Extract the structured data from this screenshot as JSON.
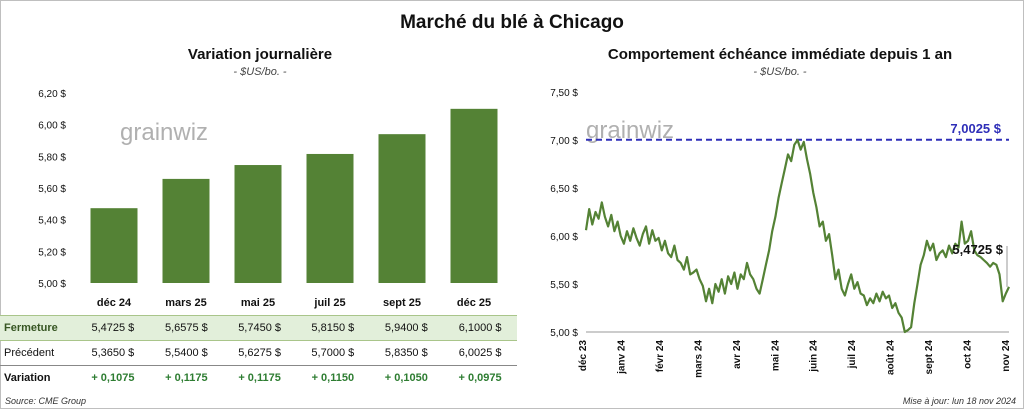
{
  "title": "Marché du blé à Chicago",
  "left_chart": {
    "title": "Variation journalière",
    "unit": "- $US/bo. -"
  },
  "right_chart": {
    "title": "Comportement échéance immédiate depuis 1 an",
    "unit": "- $US/bo. -"
  },
  "watermark": "grainwiz",
  "table": {
    "rows": [
      {
        "label": "Fermeture",
        "values": [
          "5,4725 $",
          "5,6575 $",
          "5,7450 $",
          "5,8150 $",
          "5,9400 $",
          "6,1000 $"
        ]
      },
      {
        "label": "Précédent",
        "values": [
          "5,3650 $",
          "5,5400 $",
          "5,6275 $",
          "5,7000 $",
          "5,8350 $",
          "6,0025 $"
        ]
      },
      {
        "label": "Variation",
        "values": [
          "+ 0,1075",
          "+ 0,1175",
          "+ 0,1175",
          "+ 0,1150",
          "+ 0,1050",
          "+ 0,0975"
        ]
      }
    ]
  },
  "footer": {
    "source": "Source: CME Group",
    "update": "Mise à jour: lun 18 nov 2024"
  },
  "colors": {
    "bar": "#548235",
    "line": "#548235",
    "ref_line": "#2e2eb8",
    "close_row_bg": "#e2efda"
  },
  "chart_data": [
    {
      "type": "bar",
      "title": "Variation journalière",
      "categories": [
        "déc 24",
        "mars 25",
        "mai 25",
        "juil 25",
        "sept 25",
        "déc 25"
      ],
      "values": [
        5.4725,
        5.6575,
        5.745,
        5.815,
        5.94,
        6.1
      ],
      "ylim": [
        5.0,
        6.2
      ],
      "yticks": [
        "5,00 $",
        "5,20 $",
        "5,40 $",
        "5,60 $",
        "5,80 $",
        "6,00 $",
        "6,20 $"
      ],
      "grid": false
    },
    {
      "type": "line",
      "title": "Comportement échéance immédiate depuis 1 an",
      "ylim": [
        5.0,
        7.5
      ],
      "yticks": [
        "5,00 $",
        "5,50 $",
        "6,00 $",
        "6,50 $",
        "7,00 $",
        "7,50 $"
      ],
      "xticks": [
        "déc 23",
        "janv 24",
        "févr 24",
        "mars 24",
        "avr 24",
        "mai 24",
        "juin 24",
        "juil 24",
        "août 24",
        "sept 24",
        "oct 24",
        "nov 24"
      ],
      "reference_line": {
        "value": 7.0025,
        "label": "7,0025 $"
      },
      "last_label": "5,4725 $",
      "series": [
        {
          "values": [
            6.06,
            6.28,
            6.12,
            6.25,
            6.18,
            6.35,
            6.2,
            6.1,
            6.22,
            6.05,
            6.15,
            6.0,
            5.92,
            6.05,
            5.95,
            6.08,
            5.98,
            5.9,
            6.02,
            6.1,
            5.92,
            6.06,
            5.95,
            5.98,
            5.85,
            5.95,
            5.82,
            5.78,
            5.9,
            5.75,
            5.72,
            5.65,
            5.78,
            5.6,
            5.62,
            5.65,
            5.55,
            5.48,
            5.32,
            5.45,
            5.3,
            5.5,
            5.42,
            5.55,
            5.4,
            5.58,
            5.5,
            5.62,
            5.45,
            5.6,
            5.55,
            5.72,
            5.6,
            5.55,
            5.45,
            5.4,
            5.55,
            5.7,
            5.85,
            6.05,
            6.2,
            6.4,
            6.55,
            6.7,
            6.85,
            6.78,
            6.95,
            7.0,
            6.9,
            6.98,
            6.8,
            6.65,
            6.45,
            6.3,
            6.1,
            6.15,
            5.95,
            6.02,
            5.8,
            5.55,
            5.65,
            5.45,
            5.38,
            5.5,
            5.6,
            5.45,
            5.52,
            5.4,
            5.38,
            5.28,
            5.35,
            5.3,
            5.4,
            5.32,
            5.42,
            5.35,
            5.38,
            5.25,
            5.3,
            5.2,
            5.15,
            5.0,
            5.02,
            5.05,
            5.3,
            5.5,
            5.7,
            5.8,
            5.95,
            5.85,
            5.92,
            5.75,
            5.82,
            5.85,
            5.78,
            5.9,
            5.82,
            5.92,
            5.88,
            6.15,
            5.92,
            5.95,
            6.05,
            5.85,
            5.8,
            5.78,
            5.75,
            5.72,
            5.68,
            5.72,
            5.7,
            5.6,
            5.32,
            5.4,
            5.47
          ]
        }
      ]
    }
  ]
}
